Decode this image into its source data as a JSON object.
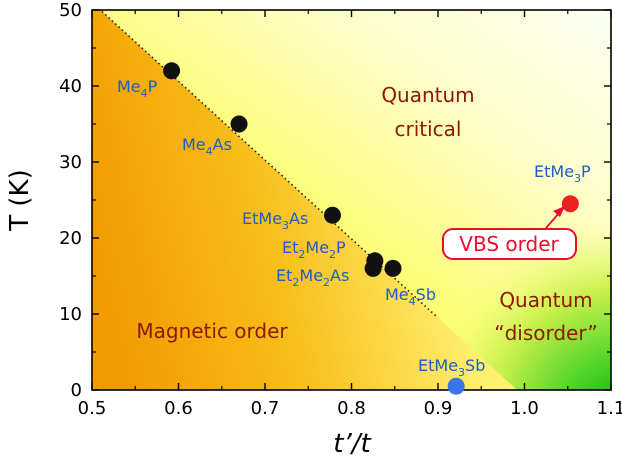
{
  "chart_data": {
    "type": "scatter",
    "title": "",
    "xlabel": "t’/t",
    "ylabel": "T (K)",
    "xlim": [
      0.5,
      1.1
    ],
    "ylim": [
      0,
      50
    ],
    "x_ticks": [
      0.5,
      0.6,
      0.7,
      0.8,
      0.9,
      1.0,
      1.1
    ],
    "x_tick_labels": [
      "0.5",
      "0.6",
      "0.7",
      "0.8",
      "0.9",
      "1.0",
      "1.1"
    ],
    "y_ticks": [
      0,
      10,
      20,
      30,
      40,
      50
    ],
    "y_tick_labels": [
      "0",
      "10",
      "20",
      "30",
      "40",
      "50"
    ],
    "phase_boundary": {
      "x": [
        0.5,
        0.9
      ],
      "y": [
        51,
        9.5
      ],
      "style": "dotted"
    },
    "points": [
      {
        "label": "Me4P",
        "x": 0.592,
        "y": 42,
        "color": "#111111"
      },
      {
        "label": "Me4As",
        "x": 0.67,
        "y": 35,
        "color": "#111111"
      },
      {
        "label": "EtMe3As",
        "x": 0.778,
        "y": 23,
        "color": "#111111"
      },
      {
        "label": "Et2Me2P",
        "x": 0.827,
        "y": 17,
        "color": "#111111"
      },
      {
        "label": "Et2Me2As",
        "x": 0.825,
        "y": 16,
        "color": "#111111"
      },
      {
        "label": "Me4Sb",
        "x": 0.848,
        "y": 16,
        "color": "#111111"
      },
      {
        "label": "EtMe3Sb",
        "x": 0.921,
        "y": 0.5,
        "color": "#3a74e8"
      },
      {
        "label": "EtMe3P",
        "x": 1.053,
        "y": 24.5,
        "color": "#f02020"
      }
    ],
    "regions": [
      {
        "label": "Magnetic order",
        "color": "#f39a00"
      },
      {
        "label": "Quantum critical",
        "color": "#ffff90"
      },
      {
        "label": "Quantum “disorder”",
        "color": "#28c81e"
      }
    ],
    "annotations": [
      {
        "text": "VBS order",
        "color": "#e8102e"
      }
    ]
  },
  "labels": {
    "me4p": {
      "a": "Me",
      "s1": "4",
      "b": "P"
    },
    "me4as": {
      "a": "Me",
      "s1": "4",
      "b": "As"
    },
    "etme3as": {
      "a": "EtMe",
      "s1": "3",
      "b": "As"
    },
    "et2me2p": {
      "a": "Et",
      "s1": "2",
      "b": "Me",
      "s2": "2",
      "c": "P"
    },
    "et2me2as": {
      "a": "Et",
      "s1": "2",
      "b": "Me",
      "s2": "2",
      "c": "As"
    },
    "me4sb": {
      "a": "Me",
      "s1": "4",
      "b": "Sb"
    },
    "etme3sb": {
      "a": "EtMe",
      "s1": "3",
      "b": "Sb"
    },
    "etme3p": {
      "a": "EtMe",
      "s1": "3",
      "b": "P"
    },
    "quantum_critical_1": "Quantum",
    "quantum_critical_2": "critical",
    "magnetic_order": "Magnetic order",
    "quantum_disorder_1": "Quantum",
    "quantum_disorder_2": "“disorder”",
    "vbs_order": "VBS order"
  }
}
